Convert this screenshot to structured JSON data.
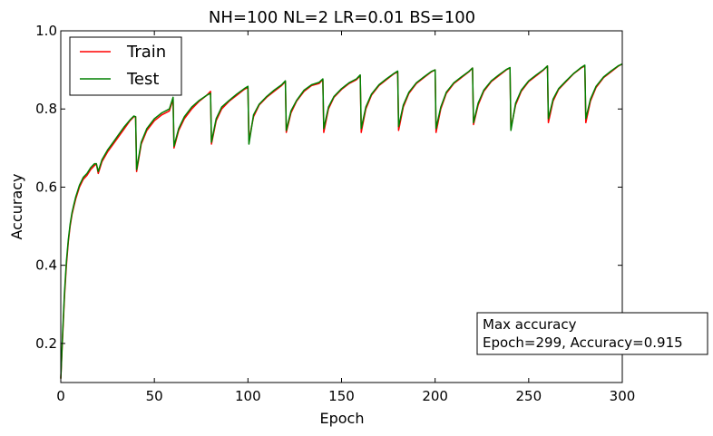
{
  "chart_data": {
    "type": "line",
    "title": "NH=100 NL=2 LR=0.01 BS=100",
    "xlabel": "Epoch",
    "ylabel": "Accuracy",
    "xlim": [
      0,
      300
    ],
    "ylim": [
      0.1,
      1.0
    ],
    "xticks": [
      0,
      50,
      100,
      150,
      200,
      250,
      300
    ],
    "yticks": [
      0.2,
      0.4,
      0.6,
      0.8,
      1.0
    ],
    "xtick_labels": [
      "0",
      "50",
      "100",
      "150",
      "200",
      "250",
      "300"
    ],
    "ytick_labels": [
      "0.2",
      "0.4",
      "0.6",
      "0.8",
      "1.0"
    ],
    "grid": false,
    "legend_position": "top-left",
    "series": [
      {
        "name": "Train",
        "color": "#ff0000",
        "points": [
          [
            0,
            0.11
          ],
          [
            1,
            0.22
          ],
          [
            2,
            0.32
          ],
          [
            3,
            0.4
          ],
          [
            4,
            0.46
          ],
          [
            5,
            0.5
          ],
          [
            6,
            0.53
          ],
          [
            7,
            0.55
          ],
          [
            8,
            0.57
          ],
          [
            10,
            0.6
          ],
          [
            12,
            0.62
          ],
          [
            14,
            0.63
          ],
          [
            16,
            0.645
          ],
          [
            18,
            0.655
          ],
          [
            19,
            0.66
          ],
          [
            20,
            0.635
          ],
          [
            22,
            0.665
          ],
          [
            25,
            0.69
          ],
          [
            28,
            0.71
          ],
          [
            31,
            0.73
          ],
          [
            34,
            0.75
          ],
          [
            37,
            0.77
          ],
          [
            39,
            0.78
          ],
          [
            40,
            0.78
          ],
          [
            40.5,
            0.64
          ],
          [
            43,
            0.71
          ],
          [
            46,
            0.745
          ],
          [
            50,
            0.77
          ],
          [
            54,
            0.785
          ],
          [
            58,
            0.795
          ],
          [
            60,
            0.825
          ],
          [
            60.5,
            0.7
          ],
          [
            63,
            0.745
          ],
          [
            66,
            0.775
          ],
          [
            70,
            0.8
          ],
          [
            74,
            0.82
          ],
          [
            78,
            0.835
          ],
          [
            80,
            0.845
          ],
          [
            80.5,
            0.71
          ],
          [
            83,
            0.77
          ],
          [
            86,
            0.8
          ],
          [
            90,
            0.82
          ],
          [
            94,
            0.835
          ],
          [
            98,
            0.85
          ],
          [
            100,
            0.855
          ],
          [
            100.5,
            0.72
          ],
          [
            103,
            0.78
          ],
          [
            106,
            0.81
          ],
          [
            110,
            0.83
          ],
          [
            114,
            0.845
          ],
          [
            118,
            0.86
          ],
          [
            120,
            0.87
          ],
          [
            120.5,
            0.74
          ],
          [
            123,
            0.79
          ],
          [
            126,
            0.82
          ],
          [
            130,
            0.845
          ],
          [
            134,
            0.86
          ],
          [
            138,
            0.865
          ],
          [
            140,
            0.875
          ],
          [
            140.5,
            0.74
          ],
          [
            143,
            0.8
          ],
          [
            146,
            0.83
          ],
          [
            150,
            0.85
          ],
          [
            154,
            0.865
          ],
          [
            158,
            0.875
          ],
          [
            160,
            0.885
          ],
          [
            160.5,
            0.74
          ],
          [
            163,
            0.8
          ],
          [
            166,
            0.835
          ],
          [
            170,
            0.86
          ],
          [
            174,
            0.875
          ],
          [
            178,
            0.89
          ],
          [
            180,
            0.895
          ],
          [
            180.5,
            0.745
          ],
          [
            183,
            0.805
          ],
          [
            186,
            0.84
          ],
          [
            190,
            0.865
          ],
          [
            194,
            0.88
          ],
          [
            198,
            0.895
          ],
          [
            200,
            0.9
          ],
          [
            200.5,
            0.74
          ],
          [
            203,
            0.8
          ],
          [
            206,
            0.84
          ],
          [
            210,
            0.865
          ],
          [
            214,
            0.88
          ],
          [
            218,
            0.895
          ],
          [
            220,
            0.905
          ],
          [
            220.5,
            0.76
          ],
          [
            223,
            0.81
          ],
          [
            226,
            0.845
          ],
          [
            230,
            0.87
          ],
          [
            234,
            0.885
          ],
          [
            238,
            0.9
          ],
          [
            240,
            0.905
          ],
          [
            240.5,
            0.75
          ],
          [
            243,
            0.81
          ],
          [
            246,
            0.845
          ],
          [
            250,
            0.87
          ],
          [
            254,
            0.885
          ],
          [
            258,
            0.9
          ],
          [
            260,
            0.91
          ],
          [
            260.5,
            0.765
          ],
          [
            263,
            0.82
          ],
          [
            266,
            0.85
          ],
          [
            270,
            0.87
          ],
          [
            274,
            0.89
          ],
          [
            278,
            0.905
          ],
          [
            280,
            0.91
          ],
          [
            280.5,
            0.765
          ],
          [
            283,
            0.82
          ],
          [
            286,
            0.855
          ],
          [
            290,
            0.88
          ],
          [
            294,
            0.895
          ],
          [
            298,
            0.91
          ],
          [
            300,
            0.915
          ]
        ]
      },
      {
        "name": "Test",
        "color": "#008000",
        "points": [
          [
            0,
            0.11
          ],
          [
            1,
            0.23
          ],
          [
            2,
            0.33
          ],
          [
            3,
            0.41
          ],
          [
            4,
            0.465
          ],
          [
            5,
            0.505
          ],
          [
            6,
            0.535
          ],
          [
            7,
            0.555
          ],
          [
            8,
            0.575
          ],
          [
            10,
            0.605
          ],
          [
            12,
            0.625
          ],
          [
            14,
            0.635
          ],
          [
            16,
            0.65
          ],
          [
            18,
            0.66
          ],
          [
            19,
            0.66
          ],
          [
            20,
            0.64
          ],
          [
            22,
            0.67
          ],
          [
            25,
            0.695
          ],
          [
            28,
            0.715
          ],
          [
            31,
            0.735
          ],
          [
            34,
            0.755
          ],
          [
            37,
            0.772
          ],
          [
            39,
            0.782
          ],
          [
            40,
            0.78
          ],
          [
            40.5,
            0.645
          ],
          [
            43,
            0.715
          ],
          [
            46,
            0.75
          ],
          [
            50,
            0.775
          ],
          [
            54,
            0.79
          ],
          [
            58,
            0.8
          ],
          [
            60,
            0.83
          ],
          [
            60.5,
            0.705
          ],
          [
            63,
            0.75
          ],
          [
            66,
            0.78
          ],
          [
            70,
            0.805
          ],
          [
            74,
            0.822
          ],
          [
            78,
            0.835
          ],
          [
            80,
            0.84
          ],
          [
            80.5,
            0.715
          ],
          [
            83,
            0.775
          ],
          [
            86,
            0.805
          ],
          [
            90,
            0.822
          ],
          [
            94,
            0.838
          ],
          [
            98,
            0.852
          ],
          [
            100,
            0.858
          ],
          [
            100.5,
            0.71
          ],
          [
            103,
            0.785
          ],
          [
            106,
            0.812
          ],
          [
            110,
            0.832
          ],
          [
            114,
            0.848
          ],
          [
            118,
            0.862
          ],
          [
            120,
            0.872
          ],
          [
            120.5,
            0.745
          ],
          [
            123,
            0.795
          ],
          [
            126,
            0.822
          ],
          [
            130,
            0.848
          ],
          [
            134,
            0.862
          ],
          [
            138,
            0.868
          ],
          [
            140,
            0.877
          ],
          [
            140.5,
            0.75
          ],
          [
            143,
            0.805
          ],
          [
            146,
            0.832
          ],
          [
            150,
            0.852
          ],
          [
            154,
            0.867
          ],
          [
            158,
            0.877
          ],
          [
            160,
            0.887
          ],
          [
            160.5,
            0.75
          ],
          [
            163,
            0.805
          ],
          [
            166,
            0.838
          ],
          [
            170,
            0.862
          ],
          [
            174,
            0.877
          ],
          [
            178,
            0.891
          ],
          [
            180,
            0.897
          ],
          [
            180.5,
            0.755
          ],
          [
            183,
            0.81
          ],
          [
            186,
            0.843
          ],
          [
            190,
            0.867
          ],
          [
            194,
            0.882
          ],
          [
            198,
            0.896
          ],
          [
            200,
            0.9
          ],
          [
            200.5,
            0.75
          ],
          [
            203,
            0.805
          ],
          [
            206,
            0.843
          ],
          [
            210,
            0.867
          ],
          [
            214,
            0.882
          ],
          [
            218,
            0.896
          ],
          [
            220,
            0.905
          ],
          [
            220.5,
            0.765
          ],
          [
            223,
            0.815
          ],
          [
            226,
            0.848
          ],
          [
            230,
            0.872
          ],
          [
            234,
            0.887
          ],
          [
            238,
            0.901
          ],
          [
            240,
            0.906
          ],
          [
            240.5,
            0.745
          ],
          [
            243,
            0.815
          ],
          [
            246,
            0.848
          ],
          [
            250,
            0.872
          ],
          [
            254,
            0.887
          ],
          [
            258,
            0.901
          ],
          [
            260,
            0.91
          ],
          [
            260.5,
            0.775
          ],
          [
            263,
            0.825
          ],
          [
            266,
            0.852
          ],
          [
            270,
            0.872
          ],
          [
            274,
            0.891
          ],
          [
            278,
            0.906
          ],
          [
            280,
            0.912
          ],
          [
            280.5,
            0.775
          ],
          [
            283,
            0.825
          ],
          [
            286,
            0.858
          ],
          [
            290,
            0.882
          ],
          [
            294,
            0.897
          ],
          [
            298,
            0.911
          ],
          [
            300,
            0.915
          ]
        ]
      }
    ],
    "annotation": {
      "line1": "Max accuracy",
      "line2": "Epoch=299, Accuracy=0.915"
    }
  }
}
